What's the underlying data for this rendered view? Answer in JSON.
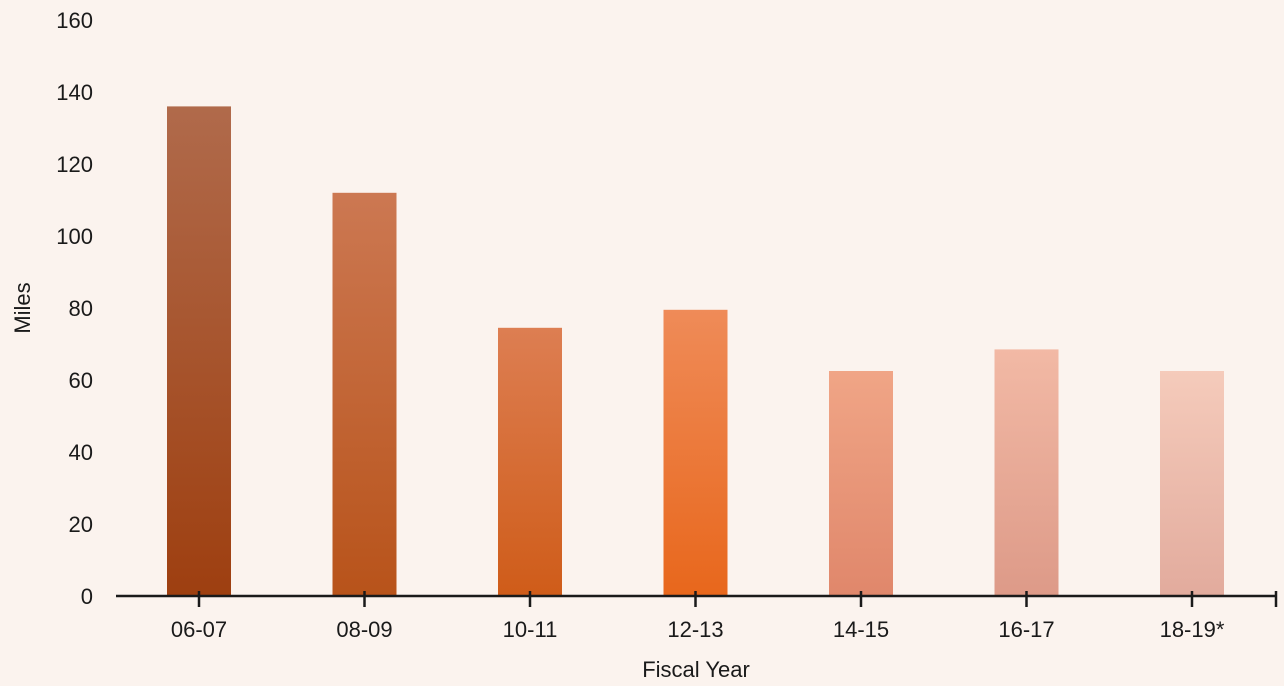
{
  "chart_data": {
    "type": "bar",
    "title": "",
    "xlabel": "Fiscal Year",
    "ylabel": "Miles",
    "ylim": [
      0,
      160
    ],
    "yticks": [
      0,
      20,
      40,
      60,
      80,
      100,
      120,
      140,
      160
    ],
    "categories": [
      "06-07",
      "08-09",
      "10-11",
      "12-13",
      "14-15",
      "16-17",
      "18-19*"
    ],
    "values": [
      136,
      112,
      74.5,
      79.5,
      62.5,
      68.5,
      62.5
    ],
    "grid": false,
    "legend": "none",
    "bar_colors": [
      [
        "#b06a4b",
        "#9e3f10"
      ],
      [
        "#cc7852",
        "#b8531a"
      ],
      [
        "#dd7e52",
        "#cf5c19"
      ],
      [
        "#ef8b58",
        "#e8671c"
      ],
      [
        "#f0a586",
        "#e0876b"
      ],
      [
        "#f2b9a5",
        "#dd9a88"
      ],
      [
        "#f5cbbb",
        "#e2ab9d"
      ]
    ]
  }
}
